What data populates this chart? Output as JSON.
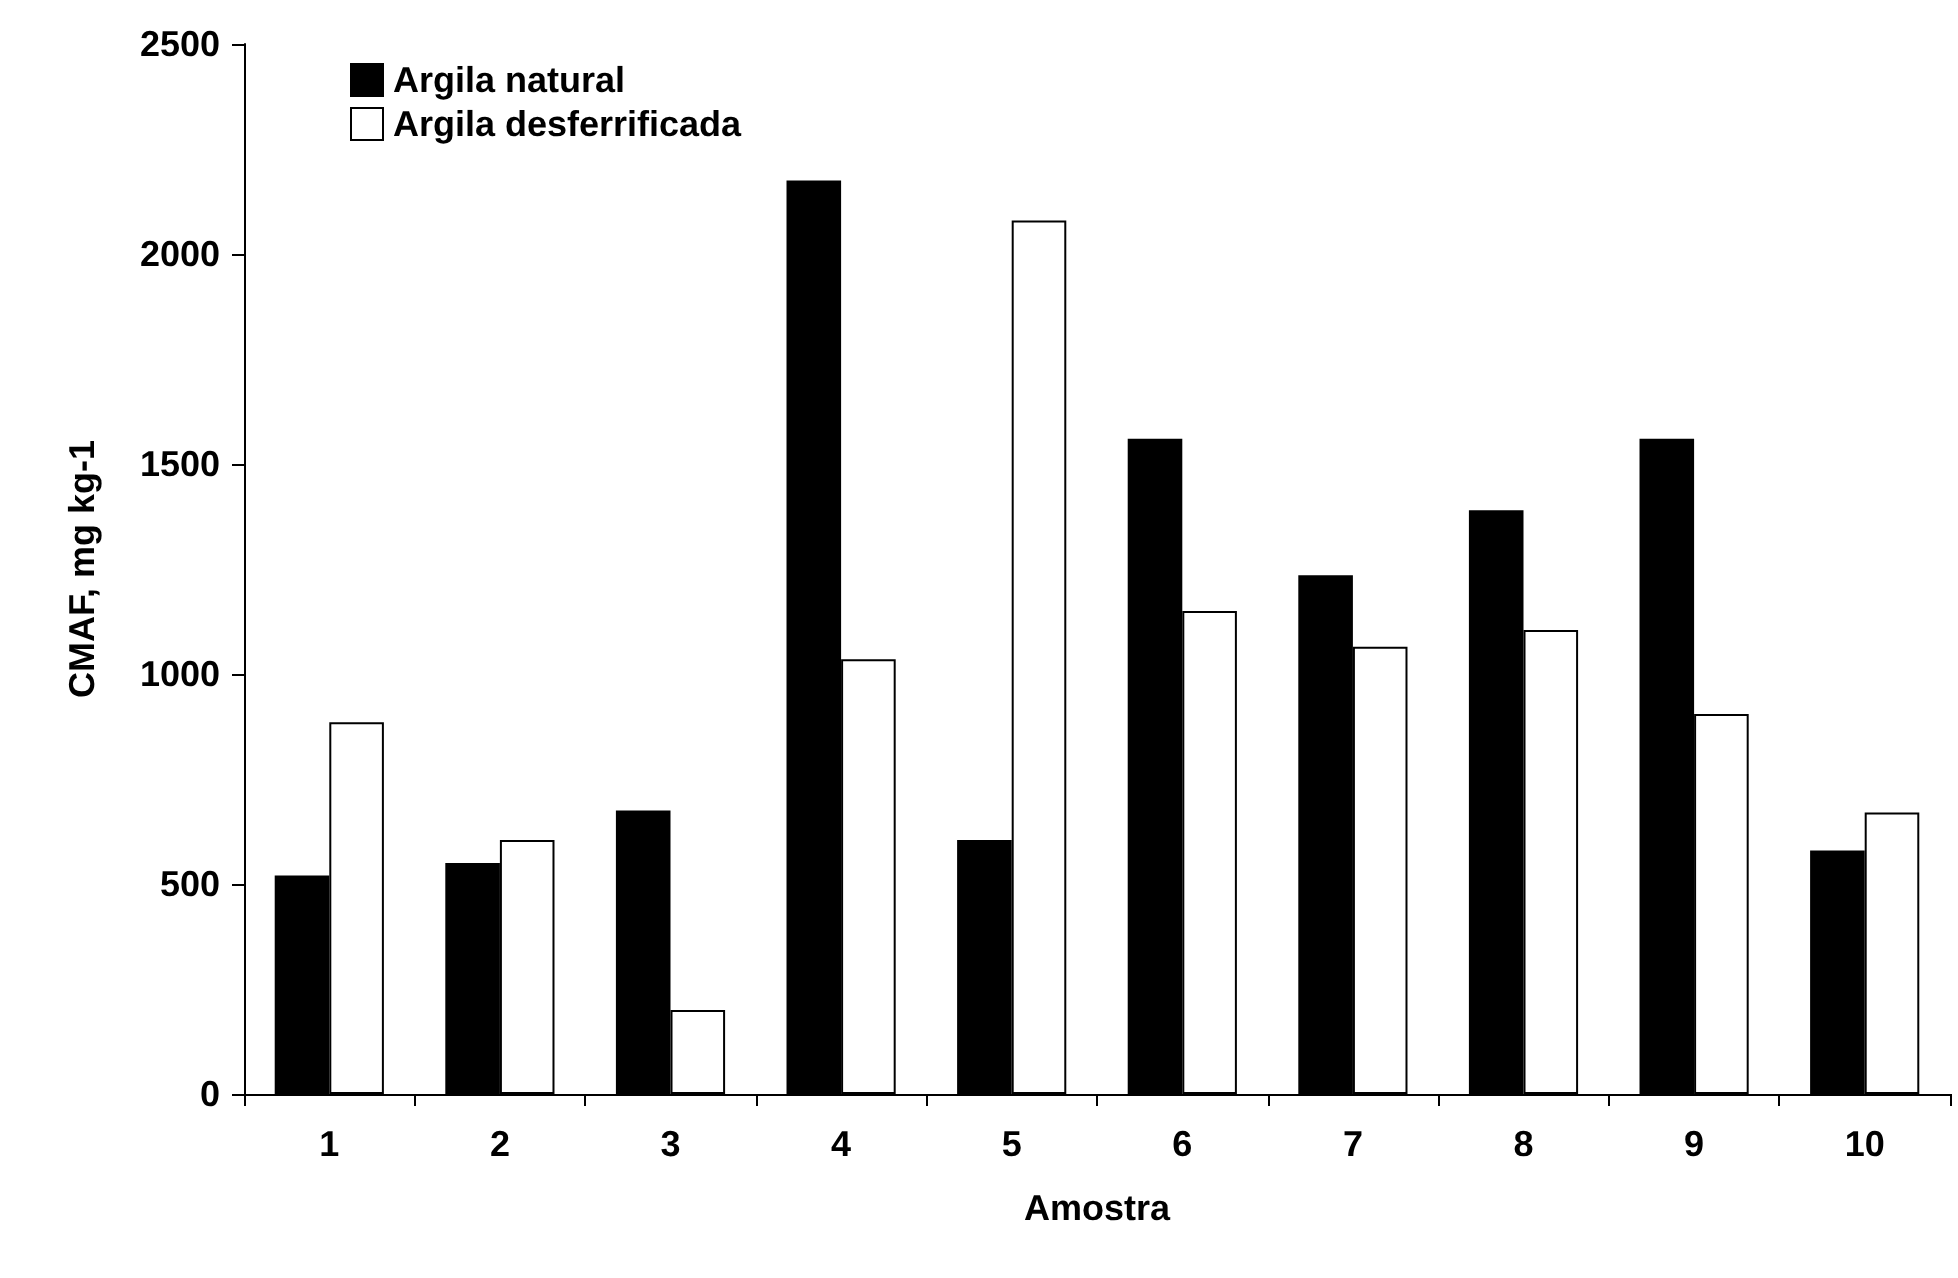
{
  "chart_data": {
    "type": "bar",
    "xlabel": "Amostra",
    "ylabel": "CMAF, mg kg-1",
    "categories": [
      "1",
      "2",
      "3",
      "4",
      "5",
      "6",
      "7",
      "8",
      "9",
      "10"
    ],
    "series": [
      {
        "name": "Argila natural",
        "color": "#000000",
        "values": [
          520,
          550,
          675,
          2175,
          605,
          1560,
          1235,
          1390,
          1560,
          580
        ]
      },
      {
        "name": "Argila desferrificada",
        "color": "#ffffff",
        "values": [
          885,
          605,
          200,
          1035,
          2080,
          1150,
          1065,
          1105,
          905,
          670
        ]
      }
    ],
    "ylim": [
      0,
      2500
    ],
    "yticks": [
      0,
      500,
      1000,
      1500,
      2000,
      2500
    ],
    "grid": false,
    "legend": "top left"
  }
}
